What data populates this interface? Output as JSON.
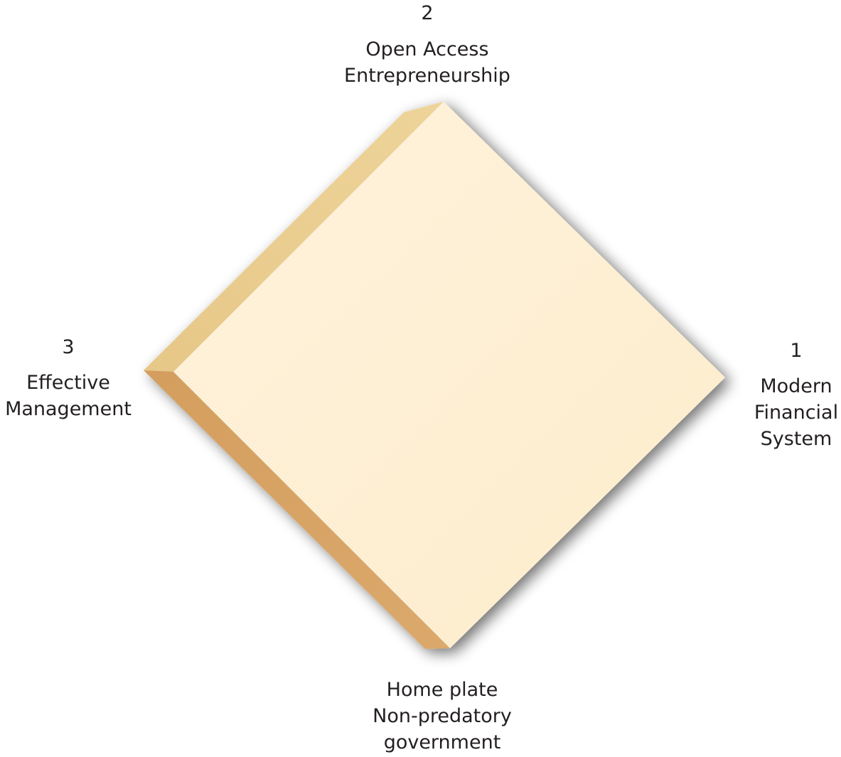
{
  "diagram": {
    "colors": {
      "face": "#fdeccc",
      "face_edge_light": "#fef3dc",
      "top_left_bevel": "#e8cc8a",
      "bottom_left_bevel": "#d6a266",
      "shadow": "#000000",
      "text": "#231f20"
    },
    "labels": {
      "top": {
        "number": "2",
        "lines": [
          "Open Access",
          "Entrepreneurship"
        ]
      },
      "left": {
        "number": "3",
        "lines": [
          "Effective",
          "Management"
        ]
      },
      "right": {
        "number": "1",
        "lines": [
          "Modern",
          "Financial",
          "System"
        ]
      },
      "bottom": {
        "lines": [
          "Home plate",
          "Non-predatory",
          "government"
        ]
      }
    }
  }
}
